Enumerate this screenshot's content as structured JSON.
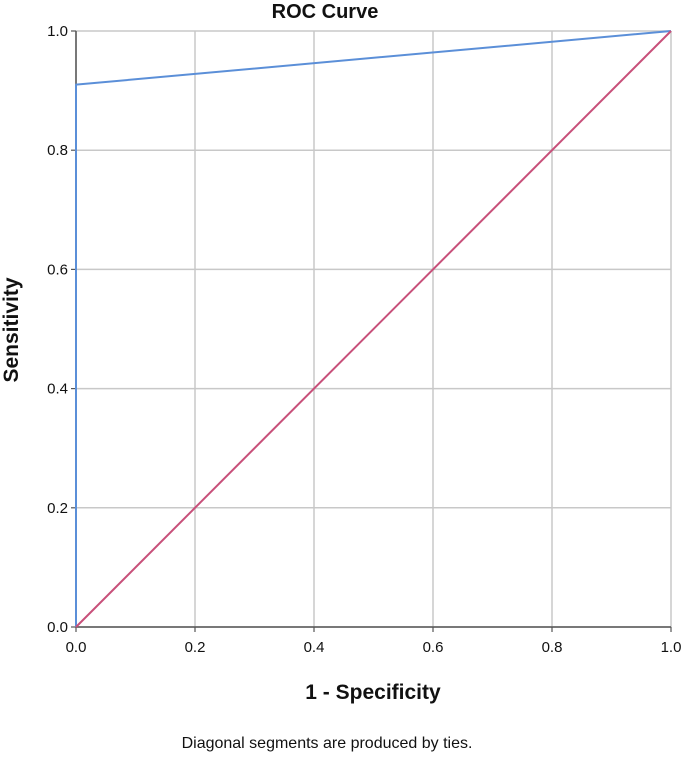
{
  "chart_data": {
    "type": "line",
    "title": "ROC Curve",
    "xlabel": "1 - Specificity",
    "ylabel": "Sensitivity",
    "xlim": [
      0.0,
      1.0
    ],
    "ylim": [
      0.0,
      1.0
    ],
    "x_ticks": [
      "0.0",
      "0.2",
      "0.4",
      "0.6",
      "0.8",
      "1.0"
    ],
    "y_ticks": [
      "0.0",
      "0.2",
      "0.4",
      "0.6",
      "0.8",
      "1.0"
    ],
    "grid": true,
    "footnote": "Diagonal segments are produced by ties.",
    "series": [
      {
        "color": "#5b8fd8",
        "x": [
          0.0,
          0.0,
          1.0
        ],
        "y": [
          0.0,
          0.91,
          1.0
        ]
      },
      {
        "color": "#c8507a",
        "x": [
          0.0,
          1.0
        ],
        "y": [
          0.0,
          1.0
        ]
      }
    ]
  }
}
